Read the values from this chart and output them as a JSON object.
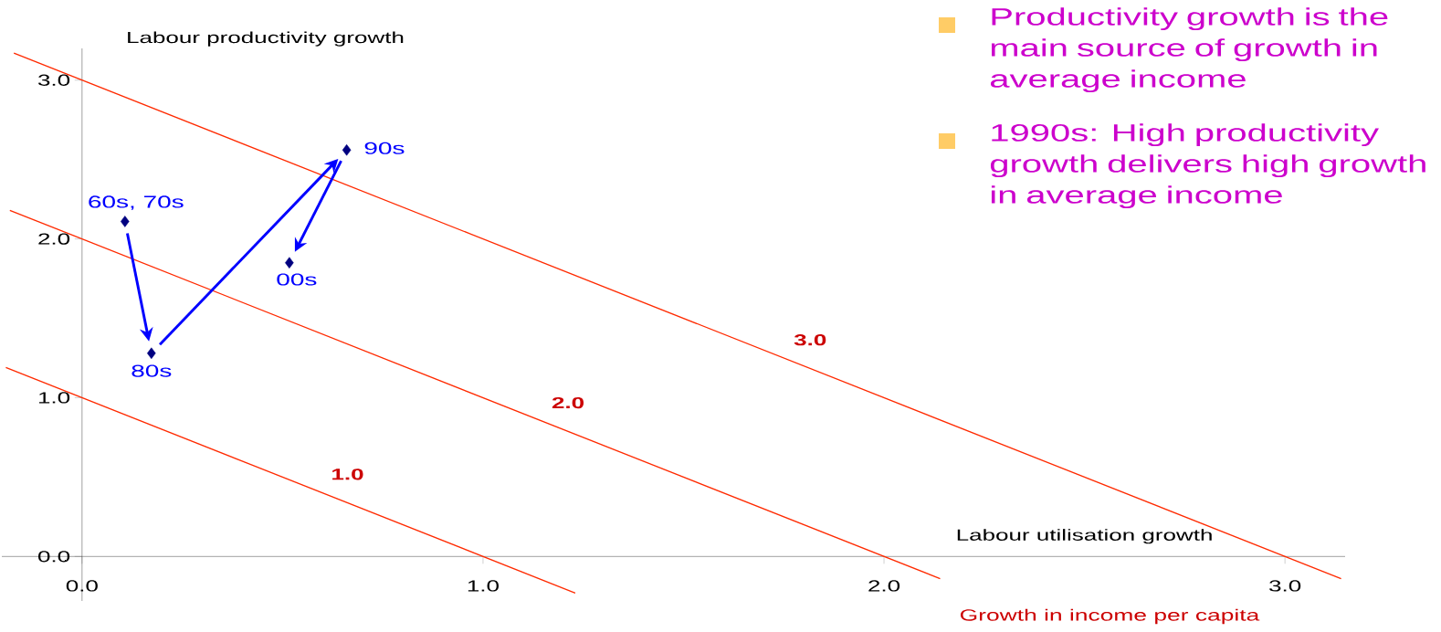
{
  "chart_data": {
    "type": "scatter",
    "xlabel": "Labour utilisation growth",
    "ylabel": "Labour productivity growth",
    "xlim": [
      -0.2,
      3.15
    ],
    "ylim": [
      -0.28,
      3.2
    ],
    "xticks": [
      {
        "value": 0,
        "label": "0.0"
      },
      {
        "value": 1,
        "label": "1.0"
      },
      {
        "value": 2,
        "label": "2.0"
      },
      {
        "value": 3,
        "label": "3.0"
      }
    ],
    "yticks": [
      {
        "value": 0,
        "label": "0.0"
      },
      {
        "value": 1,
        "label": "1.0"
      },
      {
        "value": 2,
        "label": "2.0"
      },
      {
        "value": 3,
        "label": "3.0"
      }
    ],
    "grid": false,
    "series": [
      {
        "type": "line",
        "name": "1.0",
        "color": "#ff2a00",
        "marker": "none",
        "x": [
          -0.19,
          1.23
        ],
        "values": [
          1.19,
          -0.23
        ]
      },
      {
        "type": "line",
        "name": "2.0",
        "color": "#ff2a00",
        "marker": "none",
        "x": [
          -0.18,
          2.14
        ],
        "values": [
          2.18,
          -0.14
        ]
      },
      {
        "type": "line",
        "name": "3.0",
        "color": "#ff2a00",
        "marker": "none",
        "x": [
          -0.17,
          3.14
        ],
        "values": [
          3.17,
          -0.14
        ]
      },
      {
        "color": "#000080",
        "marker": "diamond",
        "x": [
          0.107,
          0.173,
          0.66,
          0.517
        ],
        "values": [
          2.11,
          1.28,
          2.56,
          1.85
        ]
      }
    ],
    "annotations": [
      {
        "text": "60s, 70s",
        "x": 0.107,
        "y": 2.11
      },
      {
        "text": "80s",
        "x": 0.173,
        "y": 1.28
      },
      {
        "text": "90s",
        "x": 0.66,
        "y": 2.56
      },
      {
        "text": "00s",
        "x": 0.517,
        "y": 1.85
      },
      "Growth in income per capita",
      "Productivity growth is the main source of growth in average income",
      "1990s: High productivity growth delivers high growth in average income"
    ]
  }
}
